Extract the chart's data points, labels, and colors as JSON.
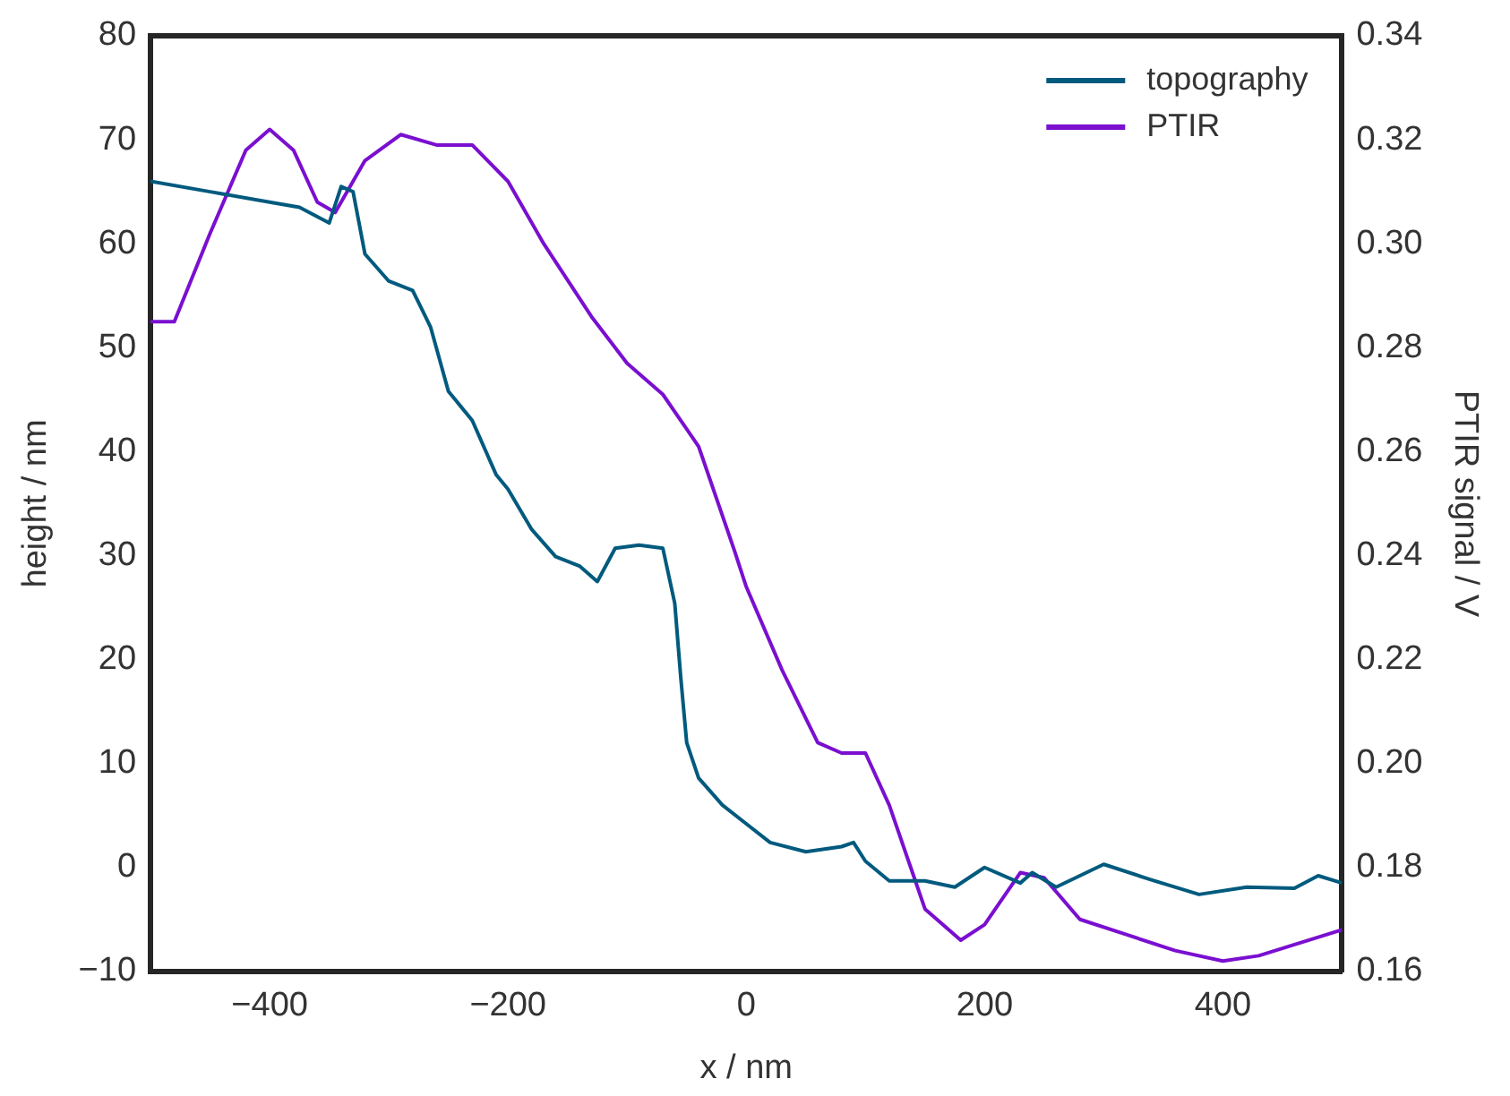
{
  "chart_data": {
    "type": "line",
    "xlabel": "x / nm",
    "ylabel": "height / nm",
    "y2label": "PTIR signal / V",
    "xlim": [
      -500,
      500
    ],
    "xticks": [
      {
        "value": -400,
        "label": "−400"
      },
      {
        "value": -200,
        "label": "−200"
      },
      0,
      200,
      400
    ],
    "ylim": [
      -10,
      80
    ],
    "yticks": [
      {
        "value": -10,
        "label": "−10"
      },
      0,
      10,
      20,
      30,
      40,
      50,
      60,
      70,
      80
    ],
    "y2lim": [
      0.16,
      0.34
    ],
    "y2ticks": [
      {
        "value": 0.16,
        "label": "0.16"
      },
      {
        "value": 0.18,
        "label": "0.18"
      },
      {
        "value": 0.2,
        "label": "0.20"
      },
      {
        "value": 0.22,
        "label": "0.22"
      },
      {
        "value": 0.24,
        "label": "0.24"
      },
      {
        "value": 0.26,
        "label": "0.26"
      },
      {
        "value": 0.28,
        "label": "0.28"
      },
      {
        "value": 0.3,
        "label": "0.30"
      },
      {
        "value": 0.32,
        "label": "0.32"
      },
      {
        "value": 0.34,
        "label": "0.34"
      }
    ],
    "grid": false,
    "legend": "top right",
    "marker": "none",
    "line_style": "solid",
    "series": [
      {
        "name": "topography",
        "color": "#005a7e",
        "x": [
          -500,
          -450,
          -400,
          -375,
          -350,
          -340,
          -330,
          -320,
          -300,
          -280,
          -265,
          -250,
          -230,
          -210,
          -200,
          -180,
          -160,
          -140,
          -125,
          -110,
          -90,
          -70,
          -60,
          -55,
          -50,
          -40,
          -20,
          0,
          20,
          50,
          80,
          90,
          100,
          120,
          150,
          175,
          200,
          230,
          240,
          260,
          300,
          340,
          380,
          420,
          460,
          480,
          500
        ],
        "values": [
          66,
          65,
          64,
          63.5,
          62,
          65.5,
          65,
          59,
          56.4,
          55.5,
          52,
          45.8,
          43,
          37.8,
          36.4,
          32.5,
          29.9,
          29,
          27.5,
          30.7,
          31,
          30.7,
          25.4,
          18.3,
          12,
          8.6,
          6,
          4.2,
          2.4,
          1.5,
          2,
          2.4,
          0.6,
          -1.3,
          -1.3,
          -1.9,
          0,
          -1.5,
          -0.5,
          -1.9,
          0.3,
          -1.2,
          -2.6,
          -1.9,
          -2,
          -0.8,
          -1.5
        ]
      },
      {
        "name": "PTIR",
        "color": "#7a0fd0",
        "axis": "y2",
        "x": [
          -500,
          -480,
          -450,
          -420,
          -400,
          -380,
          -360,
          -345,
          -320,
          -290,
          -260,
          -230,
          -200,
          -170,
          -130,
          -100,
          -70,
          -40,
          -10,
          0,
          30,
          60,
          80,
          100,
          120,
          150,
          180,
          200,
          230,
          250,
          280,
          320,
          360,
          400,
          430,
          500
        ],
        "values": [
          0.285,
          0.285,
          0.302,
          0.318,
          0.322,
          0.318,
          0.308,
          0.306,
          0.316,
          0.321,
          0.319,
          0.319,
          0.312,
          0.3,
          0.286,
          0.277,
          0.271,
          0.261,
          0.241,
          0.234,
          0.218,
          0.204,
          0.202,
          0.202,
          0.192,
          0.172,
          0.166,
          0.169,
          0.179,
          0.178,
          0.17,
          0.167,
          0.164,
          0.162,
          0.163,
          0.168
        ]
      }
    ]
  }
}
